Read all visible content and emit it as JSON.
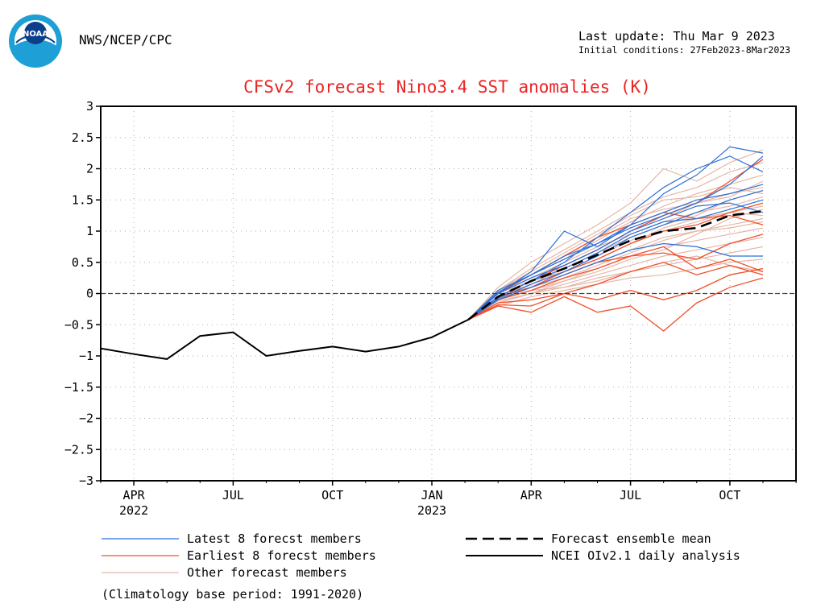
{
  "header": {
    "org": "NWS/NCEP/CPC",
    "logo_text": "NOAA",
    "last_update": "Last update: Thu Mar  9 2023",
    "initial_conditions": "Initial conditions: 27Feb2023-8Mar2023"
  },
  "colors": {
    "title": "#ee2222",
    "latest": "#2a6fd6",
    "earliest": "#f0502a",
    "other": "#e6b7a8",
    "observed": "#000000",
    "mean": "#000000"
  },
  "chart_data": {
    "type": "line",
    "title": "CFSv2 forecast Nino3.4 SST anomalies (K)",
    "ylim": [
      -3,
      3
    ],
    "y_ticks": [
      3,
      2.5,
      2,
      1.5,
      1,
      0.5,
      0,
      -0.5,
      -1,
      -1.5,
      -2,
      -2.5,
      -3
    ],
    "x_range_months": [
      0,
      21
    ],
    "x_ticks": [
      {
        "m": 1,
        "label": "APR",
        "sub": "2022"
      },
      {
        "m": 4,
        "label": "JUL",
        "sub": ""
      },
      {
        "m": 7,
        "label": "OCT",
        "sub": ""
      },
      {
        "m": 10,
        "label": "JAN",
        "sub": "2023"
      },
      {
        "m": 13,
        "label": "APR",
        "sub": ""
      },
      {
        "m": 16,
        "label": "JUL",
        "sub": ""
      },
      {
        "m": 19,
        "label": "OCT",
        "sub": ""
      }
    ],
    "zero_line": true,
    "grid": true,
    "observed": {
      "name": "NCEI OIv2.1 daily analysis",
      "x": [
        0,
        1,
        2,
        3,
        4,
        5,
        6,
        7,
        8,
        9,
        10,
        11.1
      ],
      "y": [
        -0.88,
        -0.97,
        -1.05,
        -0.68,
        -0.62,
        -1.0,
        -0.92,
        -0.85,
        -0.93,
        -0.85,
        -0.7,
        -0.42
      ]
    },
    "forecast_x": [
      11.1,
      12,
      13,
      14,
      15,
      16,
      17,
      18,
      19,
      20
    ],
    "ensemble_mean": {
      "name": "Forecast ensemble mean",
      "y": [
        -0.42,
        -0.05,
        0.2,
        0.4,
        0.62,
        0.85,
        1.0,
        1.05,
        1.25,
        1.32
      ]
    },
    "latest_members": {
      "name": "Latest 8 forecst members",
      "series": [
        [
          -0.42,
          0.0,
          0.35,
          1.0,
          0.75,
          1.1,
          1.6,
          1.9,
          2.35,
          2.25
        ],
        [
          -0.42,
          -0.05,
          0.2,
          0.5,
          0.9,
          1.3,
          1.7,
          2.0,
          2.2,
          1.95
        ],
        [
          -0.42,
          0.05,
          0.3,
          0.6,
          0.8,
          1.1,
          1.3,
          1.5,
          1.6,
          1.75
        ],
        [
          -0.42,
          -0.1,
          0.1,
          0.3,
          0.5,
          0.7,
          0.8,
          0.75,
          0.6,
          0.6
        ],
        [
          -0.42,
          0.0,
          0.25,
          0.45,
          0.7,
          1.0,
          1.2,
          1.4,
          1.45,
          1.3
        ],
        [
          -0.42,
          -0.08,
          0.15,
          0.35,
          0.6,
          0.9,
          1.1,
          1.3,
          1.5,
          1.65
        ],
        [
          -0.42,
          0.02,
          0.3,
          0.55,
          0.8,
          1.05,
          1.25,
          1.45,
          1.75,
          2.2
        ],
        [
          -0.42,
          -0.05,
          0.2,
          0.4,
          0.65,
          0.95,
          1.15,
          1.2,
          1.35,
          1.5
        ]
      ]
    },
    "earliest_members": {
      "name": "Earliest 8 forecst members",
      "series": [
        [
          -0.42,
          -0.2,
          -0.3,
          -0.05,
          -0.3,
          -0.2,
          -0.6,
          -0.15,
          0.1,
          0.25
        ],
        [
          -0.42,
          -0.15,
          -0.1,
          0.0,
          -0.1,
          0.05,
          -0.1,
          0.05,
          0.3,
          0.4
        ],
        [
          -0.42,
          -0.1,
          0.1,
          0.3,
          0.5,
          0.6,
          0.75,
          0.4,
          0.55,
          0.35
        ],
        [
          -0.42,
          -0.05,
          0.2,
          0.45,
          0.7,
          1.0,
          1.25,
          1.45,
          1.8,
          2.15
        ],
        [
          -0.42,
          0.0,
          0.3,
          0.6,
          0.9,
          1.1,
          1.3,
          1.2,
          1.25,
          1.1
        ],
        [
          -0.42,
          -0.1,
          0.05,
          0.25,
          0.4,
          0.6,
          0.65,
          0.55,
          0.8,
          0.95
        ],
        [
          -0.42,
          -0.18,
          -0.2,
          0.0,
          0.15,
          0.35,
          0.5,
          0.3,
          0.45,
          0.3
        ],
        [
          -0.42,
          -0.05,
          0.1,
          0.35,
          0.55,
          0.8,
          1.0,
          1.1,
          1.3,
          1.45
        ]
      ]
    },
    "other_members": {
      "name": "Other forecast members",
      "series": [
        [
          -0.42,
          0.1,
          0.5,
          0.8,
          1.1,
          1.45,
          2.0,
          1.8,
          2.1,
          2.3
        ],
        [
          -0.42,
          0.05,
          0.4,
          0.7,
          1.0,
          1.3,
          1.55,
          1.7,
          1.95,
          2.1
        ],
        [
          -0.42,
          0.0,
          0.3,
          0.55,
          0.85,
          1.15,
          1.4,
          1.6,
          1.75,
          1.9
        ],
        [
          -0.42,
          -0.05,
          0.2,
          0.45,
          0.7,
          1.0,
          1.2,
          1.45,
          1.6,
          1.7
        ],
        [
          -0.42,
          0.0,
          0.25,
          0.5,
          0.75,
          0.95,
          1.15,
          1.3,
          1.4,
          1.55
        ],
        [
          -0.42,
          -0.1,
          0.15,
          0.35,
          0.6,
          0.85,
          1.0,
          1.15,
          1.3,
          1.4
        ],
        [
          -0.42,
          -0.05,
          0.1,
          0.3,
          0.5,
          0.7,
          0.9,
          1.0,
          1.1,
          1.2
        ],
        [
          -0.42,
          -0.1,
          0.05,
          0.2,
          0.4,
          0.6,
          0.75,
          0.85,
          0.95,
          1.05
        ],
        [
          -0.42,
          -0.15,
          0.0,
          0.15,
          0.3,
          0.45,
          0.6,
          0.7,
          0.8,
          0.9
        ],
        [
          -0.42,
          -0.1,
          0.05,
          0.1,
          0.25,
          0.35,
          0.45,
          0.55,
          0.65,
          0.75
        ],
        [
          -0.42,
          -0.2,
          -0.05,
          0.05,
          0.15,
          0.25,
          0.3,
          0.4,
          0.5,
          0.55
        ],
        [
          -0.42,
          -0.12,
          0.0,
          0.2,
          0.35,
          0.55,
          0.7,
          0.95,
          1.2,
          1.35
        ],
        [
          -0.42,
          0.05,
          0.35,
          0.65,
          0.95,
          1.25,
          1.5,
          1.55,
          1.7,
          1.6
        ],
        [
          -0.42,
          -0.05,
          0.15,
          0.4,
          0.65,
          0.9,
          1.1,
          1.25,
          1.5,
          1.65
        ],
        [
          -0.42,
          -0.08,
          0.1,
          0.25,
          0.45,
          0.65,
          0.85,
          1.0,
          1.05,
          1.15
        ],
        [
          -0.42,
          0.02,
          0.3,
          0.6,
          0.9,
          1.2,
          1.35,
          1.45,
          1.55,
          1.8
        ],
        [
          -0.42,
          -0.15,
          0.0,
          0.1,
          0.2,
          0.35,
          0.5,
          0.6,
          0.45,
          0.35
        ],
        [
          -0.42,
          0.0,
          0.2,
          0.35,
          0.55,
          0.8,
          1.05,
          1.2,
          1.3,
          1.25
        ]
      ]
    },
    "legend": {
      "latest": "Latest 8 forecst members",
      "earliest": "Earliest 8 forecst members",
      "other": "Other forecast members",
      "mean": "Forecast ensemble mean",
      "observed": "NCEI OIv2.1 daily analysis",
      "climatology": "(Climatology base period: 1991-2020)"
    }
  }
}
